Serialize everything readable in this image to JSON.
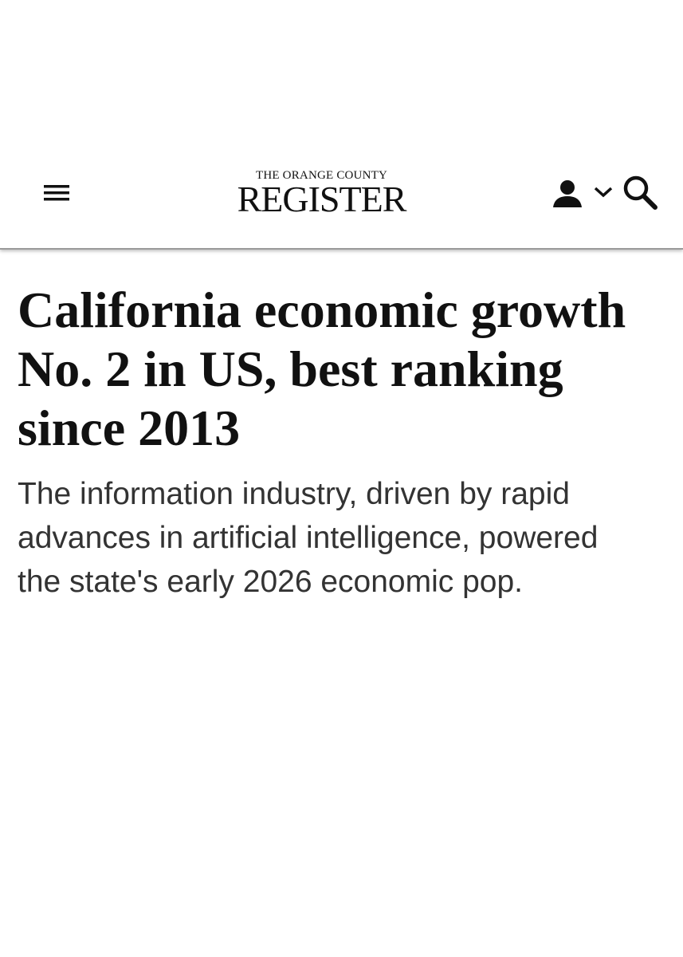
{
  "header": {
    "logo_top": "THE ORANGE COUNTY",
    "logo_main": "REGISTER"
  },
  "article": {
    "headline": "California economic growth No. 2 in US, best ranking since 2013",
    "dek": "The information industry, driven by rapid advances in artificial intelligence, powered the state's early 2026 economic pop."
  }
}
